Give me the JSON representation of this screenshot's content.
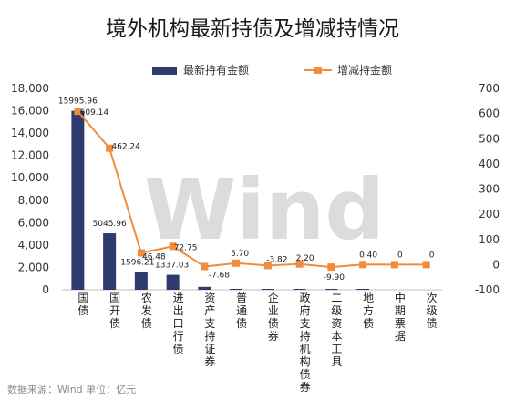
{
  "chart_data": {
    "type": "bar+line",
    "title": "境外机构最新持债及增减持情况",
    "categories": [
      "国债",
      "国开债",
      "农发债",
      "进出口行债",
      "资产支持证券",
      "普通债",
      "企业债券",
      "政府支持机构债券",
      "二级资本工具",
      "地方债",
      "中期票据",
      "次级债"
    ],
    "series": [
      {
        "name": "最新持有金额",
        "type": "bar",
        "axis": "left",
        "color": "#2e3b6e",
        "values": [
          15995.96,
          5045.96,
          1596.21,
          1337.03,
          260,
          60,
          40,
          20,
          20,
          20,
          0,
          0
        ],
        "labels": [
          "15995.96",
          "5045.96",
          "1596.21",
          "1337.03",
          "",
          "",
          "",
          "",
          "",
          "",
          "",
          ""
        ]
      },
      {
        "name": "增减持金额",
        "type": "line",
        "axis": "right",
        "color": "#f08c3c",
        "values": [
          609.14,
          462.24,
          46.48,
          72.75,
          -7.68,
          5.7,
          -3.82,
          2.2,
          -9.9,
          0.4,
          0,
          0
        ],
        "labels": [
          "609.14",
          "462.24",
          "46.48",
          "72.75",
          "-7.68",
          "5.70",
          "-3.82",
          "2.20",
          "-9.90",
          "0.40",
          "0",
          "0"
        ]
      }
    ],
    "left_axis": {
      "min": 0,
      "max": 18000,
      "step": 2000,
      "tick_labels": [
        "0",
        "2,000",
        "4,000",
        "6,000",
        "8,000",
        "10,000",
        "12,000",
        "14,000",
        "16,000",
        "18,000"
      ]
    },
    "right_axis": {
      "min": -100,
      "max": 700,
      "step": 100,
      "tick_labels": [
        "-100",
        "0",
        "100",
        "200",
        "300",
        "400",
        "500",
        "600",
        "700"
      ]
    },
    "legend": {
      "position": "top",
      "items": [
        "最新持有金额",
        "增减持金额"
      ]
    },
    "grid": false,
    "watermark": "Wind",
    "source": "数据来源：Wind    单位：亿元"
  }
}
